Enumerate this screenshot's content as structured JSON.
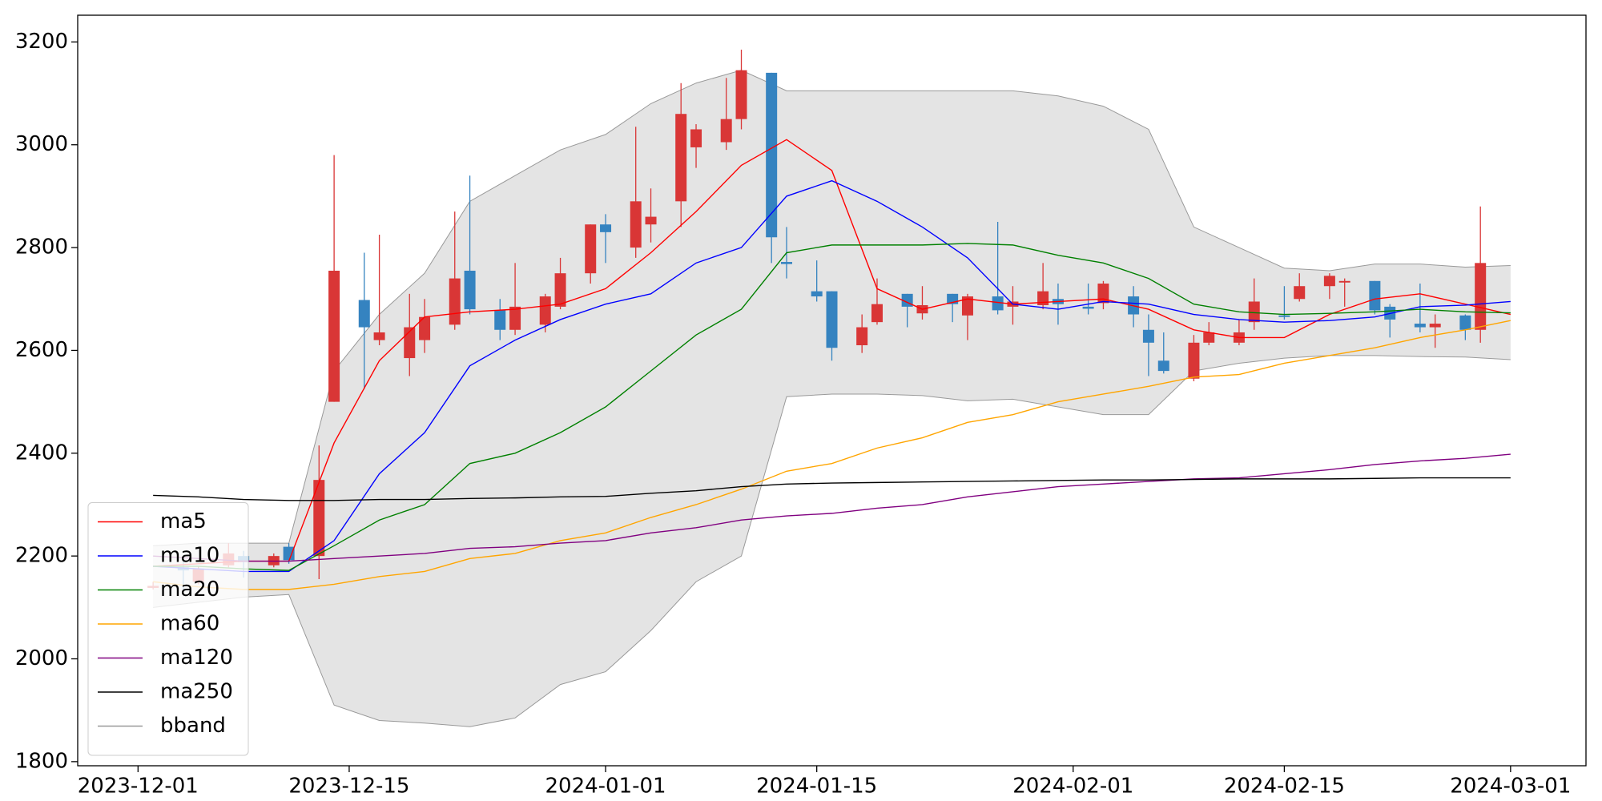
{
  "chart_data": {
    "type": "candlestick",
    "x": [
      "2023-12-02",
      "2023-12-04",
      "2023-12-05",
      "2023-12-07",
      "2023-12-08",
      "2023-12-10",
      "2023-12-11",
      "2023-12-13",
      "2023-12-14",
      "2023-12-16",
      "2023-12-17",
      "2023-12-19",
      "2023-12-20",
      "2023-12-22",
      "2023-12-23",
      "2023-12-25",
      "2023-12-26",
      "2023-12-28",
      "2023-12-29",
      "2023-12-31",
      "2024-01-01",
      "2024-01-03",
      "2024-01-04",
      "2024-01-06",
      "2024-01-07",
      "2024-01-09",
      "2024-01-10",
      "2024-01-12",
      "2024-01-13",
      "2024-01-15",
      "2024-01-16",
      "2024-01-18",
      "2024-01-19",
      "2024-01-21",
      "2024-01-22",
      "2024-01-24",
      "2024-01-25",
      "2024-01-27",
      "2024-01-28",
      "2024-01-30",
      "2024-01-31",
      "2024-02-02",
      "2024-02-03",
      "2024-02-05",
      "2024-02-06",
      "2024-02-07",
      "2024-02-09",
      "2024-02-10",
      "2024-02-12",
      "2024-02-13",
      "2024-02-15",
      "2024-02-16",
      "2024-02-18",
      "2024-02-19",
      "2024-02-21",
      "2024-02-22",
      "2024-02-24",
      "2024-02-25",
      "2024-02-27",
      "2024-02-28"
    ],
    "open": [
      2138,
      2178,
      2150,
      2182,
      2200,
      2182,
      2218,
      2200,
      2500,
      2698,
      2620,
      2585,
      2620,
      2650,
      2755,
      2678,
      2640,
      2650,
      2685,
      2750,
      2845,
      2800,
      2845,
      2890,
      2995,
      3005,
      3050,
      3140,
      2772,
      2715,
      2715,
      2610,
      2655,
      2710,
      2672,
      2710,
      2668,
      2705,
      2685,
      2688,
      2700,
      2685,
      2692,
      2705,
      2640,
      2580,
      2545,
      2615,
      2615,
      2655,
      2668,
      2700,
      2725,
      2732,
      2735,
      2685,
      2652,
      2645,
      2668,
      2640
    ],
    "close": [
      2142,
      2172,
      2175,
      2205,
      2188,
      2200,
      2192,
      2348,
      2755,
      2645,
      2635,
      2645,
      2665,
      2740,
      2680,
      2640,
      2685,
      2705,
      2750,
      2845,
      2830,
      2890,
      2860,
      3060,
      3030,
      3050,
      3145,
      2820,
      2768,
      2705,
      2605,
      2645,
      2690,
      2685,
      2688,
      2690,
      2705,
      2678,
      2695,
      2715,
      2690,
      2681,
      2730,
      2670,
      2615,
      2560,
      2615,
      2635,
      2635,
      2695,
      2665,
      2725,
      2745,
      2735,
      2678,
      2660,
      2645,
      2652,
      2640,
      2770
    ],
    "high": [
      2150,
      2190,
      2180,
      2225,
      2210,
      2205,
      2225,
      2415,
      2980,
      2790,
      2825,
      2710,
      2700,
      2870,
      2940,
      2700,
      2770,
      2710,
      2780,
      2845,
      2865,
      3035,
      2915,
      3120,
      3040,
      3130,
      3185,
      3140,
      2840,
      2775,
      2715,
      2670,
      2740,
      2710,
      2725,
      2710,
      2710,
      2850,
      2725,
      2770,
      2730,
      2730,
      2735,
      2725,
      2670,
      2635,
      2630,
      2655,
      2660,
      2740,
      2725,
      2750,
      2750,
      2740,
      2735,
      2690,
      2730,
      2670,
      2670,
      2880
    ],
    "low": [
      2135,
      2135,
      2145,
      2178,
      2158,
      2178,
      2185,
      2155,
      2500,
      2525,
      2610,
      2550,
      2595,
      2640,
      2670,
      2620,
      2630,
      2635,
      2680,
      2730,
      2770,
      2780,
      2810,
      2840,
      2955,
      2990,
      3030,
      2770,
      2740,
      2695,
      2580,
      2595,
      2650,
      2645,
      2660,
      2655,
      2620,
      2670,
      2650,
      2680,
      2650,
      2670,
      2680,
      2645,
      2550,
      2555,
      2540,
      2610,
      2610,
      2640,
      2660,
      2695,
      2700,
      2685,
      2670,
      2625,
      2635,
      2605,
      2620,
      2615
    ],
    "up_color": "#d93636",
    "down_color": "#3583c0",
    "overlay": {
      "x": [
        "2023-12-02",
        "2023-12-05",
        "2023-12-08",
        "2023-12-11",
        "2023-12-14",
        "2023-12-17",
        "2023-12-20",
        "2023-12-23",
        "2023-12-26",
        "2023-12-29",
        "2024-01-01",
        "2024-01-04",
        "2024-01-07",
        "2024-01-10",
        "2024-01-13",
        "2024-01-16",
        "2024-01-19",
        "2024-01-22",
        "2024-01-25",
        "2024-01-28",
        "2024-01-31",
        "2024-02-03",
        "2024-02-06",
        "2024-02-09",
        "2024-02-12",
        "2024-02-15",
        "2024-02-18",
        "2024-02-21",
        "2024-02-24",
        "2024-02-27",
        "2024-03-01"
      ],
      "band": {
        "name": "bband",
        "color": "#e4e4e4",
        "edge_color": "#999999",
        "upper": [
          2220,
          2225,
          2225,
          2225,
          2560,
          2670,
          2750,
          2890,
          2940,
          2990,
          3020,
          3080,
          3120,
          3145,
          3105,
          3105,
          3105,
          3105,
          3105,
          3105,
          3095,
          3075,
          3030,
          2840,
          2800,
          2760,
          2755,
          2768,
          2768,
          2762,
          2765
        ],
        "lower": [
          2100,
          2110,
          2120,
          2125,
          1910,
          1880,
          1875,
          1868,
          1885,
          1950,
          1975,
          2055,
          2150,
          2200,
          2510,
          2515,
          2515,
          2512,
          2502,
          2505,
          2490,
          2475,
          2475,
          2560,
          2575,
          2585,
          2590,
          2590,
          2588,
          2587,
          2582
        ]
      },
      "series": [
        {
          "name": "ma5",
          "color": "#ff0000",
          "values": [
            2180,
            2185,
            2190,
            2190,
            2420,
            2580,
            2665,
            2675,
            2680,
            2690,
            2720,
            2790,
            2870,
            2960,
            3010,
            2950,
            2720,
            2680,
            2700,
            2690,
            2695,
            2700,
            2680,
            2640,
            2625,
            2625,
            2670,
            2700,
            2710,
            2690,
            2670
          ]
        },
        {
          "name": "ma10",
          "color": "#0000ff",
          "values": [
            2180,
            2175,
            2170,
            2170,
            2230,
            2360,
            2440,
            2570,
            2620,
            2660,
            2690,
            2710,
            2770,
            2800,
            2900,
            2930,
            2890,
            2840,
            2780,
            2690,
            2680,
            2695,
            2690,
            2670,
            2660,
            2655,
            2658,
            2665,
            2685,
            2688,
            2695
          ]
        },
        {
          "name": "ma20",
          "color": "#008000",
          "values": [
            2180,
            2180,
            2175,
            2172,
            2220,
            2270,
            2300,
            2380,
            2400,
            2440,
            2490,
            2560,
            2630,
            2680,
            2790,
            2805,
            2805,
            2805,
            2808,
            2805,
            2785,
            2770,
            2740,
            2690,
            2675,
            2670,
            2672,
            2675,
            2680,
            2675,
            2673
          ]
        },
        {
          "name": "ma60",
          "color": "#ffa500",
          "values": [
            2150,
            2140,
            2135,
            2135,
            2145,
            2160,
            2170,
            2195,
            2205,
            2230,
            2245,
            2275,
            2300,
            2330,
            2365,
            2380,
            2410,
            2430,
            2460,
            2475,
            2500,
            2515,
            2530,
            2548,
            2553,
            2575,
            2590,
            2605,
            2625,
            2640,
            2658
          ]
        },
        {
          "name": "ma120",
          "color": "#800080",
          "values": [
            2200,
            2195,
            2190,
            2190,
            2195,
            2200,
            2205,
            2215,
            2218,
            2225,
            2230,
            2245,
            2255,
            2270,
            2278,
            2283,
            2293,
            2300,
            2315,
            2325,
            2335,
            2340,
            2345,
            2350,
            2352,
            2360,
            2368,
            2378,
            2385,
            2390,
            2398
          ]
        },
        {
          "name": "ma250",
          "color": "#000000",
          "values": [
            2318,
            2315,
            2310,
            2308,
            2308,
            2310,
            2310,
            2312,
            2313,
            2315,
            2316,
            2322,
            2327,
            2335,
            2340,
            2342,
            2343,
            2344,
            2345,
            2346,
            2347,
            2348,
            2348,
            2349,
            2350,
            2350,
            2350,
            2351,
            2352,
            2352,
            2352
          ]
        }
      ]
    },
    "xlim": [
      "2023-11-27",
      "2024-03-06"
    ],
    "xticks": [
      "2023-12-01",
      "2023-12-15",
      "2024-01-01",
      "2024-01-15",
      "2024-02-01",
      "2024-02-15",
      "2024-03-01"
    ],
    "ylim": [
      1792,
      3252
    ],
    "yticks": [
      1800,
      2000,
      2200,
      2400,
      2600,
      2800,
      3000,
      3200
    ],
    "legend": "lower left"
  }
}
